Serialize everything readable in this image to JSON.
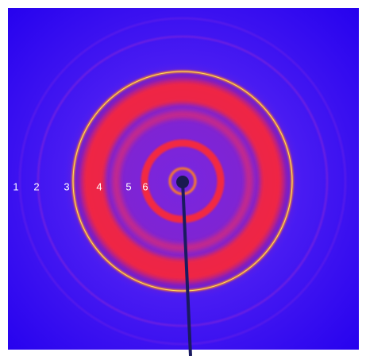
{
  "ring_labels": [
    "1",
    "2",
    "3",
    "4",
    "5",
    "6"
  ]
}
